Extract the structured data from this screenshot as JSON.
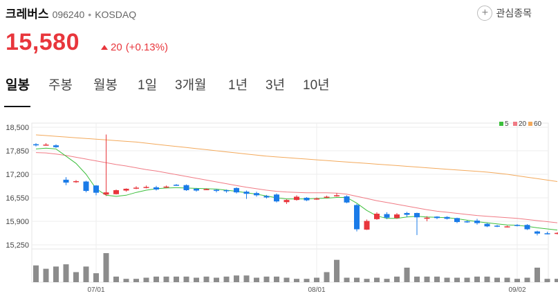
{
  "stock": {
    "name": "크레버스",
    "code": "096240",
    "market": "KOSDAQ",
    "price": "15,580",
    "change": "20",
    "change_pct": "(+0.13%)"
  },
  "favorite_label": "관심종목",
  "tabs": [
    "일봉",
    "주봉",
    "월봉",
    "1일",
    "3개월",
    "1년",
    "3년",
    "10년"
  ],
  "active_tab": 0,
  "colors": {
    "up": "#e8363c",
    "down": "#1a7be8",
    "ma5": "#3cbf3c",
    "ma20": "#f07a84",
    "ma60": "#f3a95b",
    "volume": "#8c8c8c"
  },
  "chart_data": {
    "type": "candlestick",
    "y_ticks": [
      "18,500",
      "17,850",
      "17,200",
      "16,550",
      "15,900",
      "15,250"
    ],
    "ylim": [
      15250,
      18500
    ],
    "x_ticks": [
      {
        "index": 6,
        "label": "07/01"
      },
      {
        "index": 28,
        "label": "08/01"
      },
      {
        "index": 48,
        "label": "09/02"
      }
    ],
    "legend": [
      "5",
      "20",
      "60"
    ],
    "candles": [
      [
        18030,
        18060,
        17970,
        18000
      ],
      [
        18020,
        18060,
        17990,
        18020
      ],
      [
        18000,
        18030,
        17930,
        17950
      ],
      [
        17050,
        17120,
        16900,
        16970
      ],
      [
        17000,
        17040,
        16960,
        17010
      ],
      [
        17000,
        17020,
        16700,
        16740
      ],
      [
        16890,
        16900,
        16620,
        16690
      ],
      [
        16640,
        18300,
        16600,
        16700
      ],
      [
        16650,
        16780,
        16640,
        16760
      ],
      [
        16750,
        16810,
        16720,
        16800
      ],
      [
        16810,
        16870,
        16790,
        16830
      ],
      [
        16840,
        16890,
        16810,
        16850
      ],
      [
        16840,
        16880,
        16750,
        16780
      ],
      [
        16850,
        16890,
        16820,
        16860
      ],
      [
        16910,
        16930,
        16880,
        16900
      ],
      [
        16900,
        16920,
        16740,
        16760
      ],
      [
        16800,
        16820,
        16720,
        16750
      ],
      [
        16770,
        16810,
        16760,
        16790
      ],
      [
        16770,
        16790,
        16700,
        16740
      ],
      [
        16760,
        16780,
        16690,
        16740
      ],
      [
        16820,
        16840,
        16670,
        16700
      ],
      [
        16720,
        16750,
        16520,
        16660
      ],
      [
        16680,
        16720,
        16580,
        16620
      ],
      [
        16600,
        16630,
        16530,
        16560
      ],
      [
        16640,
        16670,
        16420,
        16450
      ],
      [
        16430,
        16510,
        16380,
        16490
      ],
      [
        16490,
        16620,
        16470,
        16580
      ],
      [
        16550,
        16570,
        16460,
        16480
      ],
      [
        16530,
        16560,
        16490,
        16530
      ],
      [
        16560,
        16610,
        16540,
        16580
      ],
      [
        16590,
        16680,
        16580,
        16620
      ],
      [
        16590,
        16620,
        16400,
        16420
      ],
      [
        16350,
        16380,
        15620,
        15680
      ],
      [
        15670,
        15950,
        15660,
        15910
      ],
      [
        15960,
        16150,
        15940,
        16110
      ],
      [
        16100,
        16150,
        15960,
        16000
      ],
      [
        15990,
        16130,
        15970,
        16090
      ],
      [
        16130,
        16160,
        16020,
        16080
      ],
      [
        16130,
        16140,
        15520,
        16010
      ],
      [
        15970,
        16040,
        15900,
        16000
      ],
      [
        16030,
        16040,
        15960,
        15990
      ],
      [
        16020,
        16040,
        15950,
        15970
      ],
      [
        15990,
        16000,
        15850,
        15880
      ],
      [
        15900,
        15920,
        15860,
        15890
      ],
      [
        15920,
        15970,
        15810,
        15850
      ],
      [
        15830,
        15850,
        15740,
        15760
      ],
      [
        15780,
        15800,
        15740,
        15770
      ],
      [
        15750,
        15780,
        15730,
        15760
      ],
      [
        15800,
        15820,
        15760,
        15790
      ],
      [
        15800,
        15820,
        15660,
        15680
      ],
      [
        15620,
        15640,
        15510,
        15560
      ],
      [
        15570,
        15610,
        15540,
        15560
      ],
      [
        15560,
        15600,
        15540,
        15580
      ]
    ],
    "ma5": [
      17900,
      17920,
      17900,
      17700,
      17500,
      17200,
      16800,
      16620,
      16590,
      16620,
      16700,
      16760,
      16800,
      16820,
      16830,
      16820,
      16810,
      16800,
      16790,
      16760,
      16730,
      16690,
      16650,
      16600,
      16550,
      16520,
      16520,
      16520,
      16530,
      16540,
      16560,
      16560,
      16400,
      16200,
      16050,
      15980,
      15980,
      16020,
      16040,
      16020,
      16010,
      16000,
      15970,
      15930,
      15890,
      15860,
      15830,
      15800,
      15790,
      15760,
      15720,
      15690,
      15660
    ],
    "ma20": [
      17800,
      17790,
      17760,
      17720,
      17670,
      17620,
      17570,
      17520,
      17470,
      17430,
      17380,
      17330,
      17290,
      17240,
      17190,
      17140,
      17090,
      17040,
      16990,
      16940,
      16890,
      16840,
      16800,
      16760,
      16730,
      16710,
      16700,
      16690,
      16690,
      16690,
      16680,
      16650,
      16590,
      16530,
      16470,
      16420,
      16370,
      16320,
      16270,
      16220,
      16180,
      16150,
      16120,
      16090,
      16060,
      16040,
      16020,
      16000,
      15980,
      15950,
      15920,
      15890,
      15860
    ],
    "ma60": [
      18290,
      18270,
      18250,
      18230,
      18210,
      18190,
      18170,
      18150,
      18130,
      18110,
      18090,
      18060,
      18030,
      18000,
      17970,
      17940,
      17910,
      17880,
      17850,
      17820,
      17790,
      17760,
      17730,
      17700,
      17680,
      17660,
      17640,
      17620,
      17600,
      17580,
      17560,
      17540,
      17520,
      17500,
      17480,
      17460,
      17440,
      17420,
      17400,
      17380,
      17360,
      17340,
      17320,
      17300,
      17280,
      17260,
      17230,
      17200,
      17160,
      17120,
      17080,
      17040,
      17000
    ],
    "volume": [
      30,
      24,
      28,
      32,
      18,
      28,
      16,
      52,
      10,
      6,
      6,
      8,
      10,
      10,
      10,
      10,
      8,
      10,
      8,
      10,
      12,
      12,
      8,
      10,
      10,
      8,
      6,
      6,
      8,
      18,
      40,
      8,
      8,
      6,
      8,
      6,
      10,
      26,
      10,
      10,
      10,
      8,
      8,
      8,
      10,
      10,
      8,
      8,
      6,
      8,
      26,
      6,
      6
    ]
  }
}
